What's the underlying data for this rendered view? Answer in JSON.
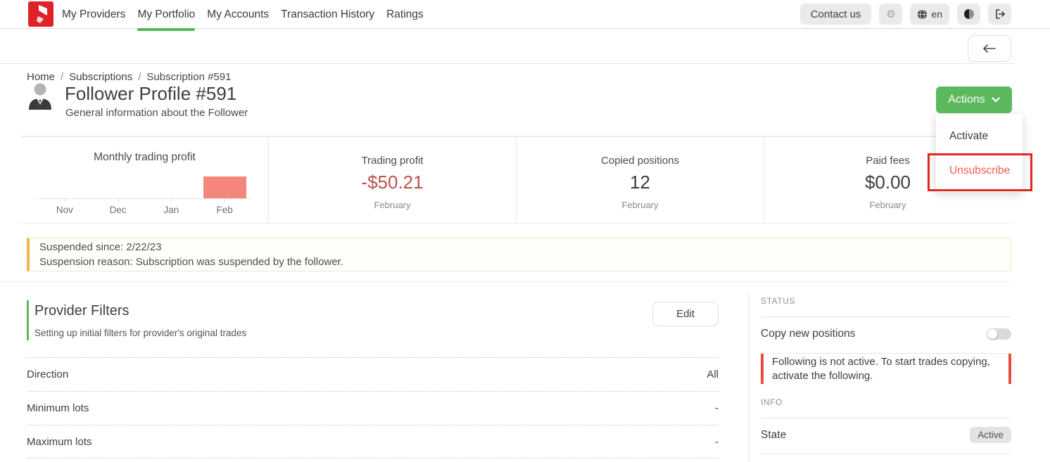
{
  "topbar": {
    "contact_us": "Contact us",
    "language": "en"
  },
  "nav": {
    "items": [
      {
        "label": "My Providers",
        "active": false
      },
      {
        "label": "My Portfolio",
        "active": true
      },
      {
        "label": "My Accounts",
        "active": false
      },
      {
        "label": "Transaction History",
        "active": false
      },
      {
        "label": "Ratings",
        "active": false
      }
    ]
  },
  "breadcrumb": {
    "separator": "/",
    "items": [
      "Home",
      "Subscriptions",
      "Subscription #591"
    ]
  },
  "profile": {
    "title": "Follower Profile #591",
    "subtitle": "General information about the Follower"
  },
  "actions": {
    "label": "Actions",
    "menu": [
      {
        "label": "Activate",
        "danger": false,
        "annotated": false
      },
      {
        "label": "Unsubscribe",
        "danger": true,
        "annotated": true
      }
    ]
  },
  "stats": {
    "chart_title": "Monthly trading profit",
    "cards": [
      {
        "title": "Trading profit",
        "value": "-$50.21",
        "period": "February",
        "negative": true
      },
      {
        "title": "Copied positions",
        "value": "12",
        "period": "February",
        "negative": false
      },
      {
        "title": "Paid fees",
        "value": "$0.00",
        "period": "February",
        "negative": false
      }
    ]
  },
  "chart_data": {
    "type": "bar",
    "title": "Monthly trading profit",
    "categories": [
      "Nov",
      "Dec",
      "Jan",
      "Feb"
    ],
    "values": [
      0,
      0,
      0,
      -50.21
    ],
    "bar_color": "#f4867b",
    "xlabel": "",
    "ylabel": "",
    "legend": "none",
    "grid": false
  },
  "banner": {
    "line1": "Suspended since: 2/22/23",
    "line2": "Suspension reason: Subscription was suspended by the follower."
  },
  "filters": {
    "title": "Provider Filters",
    "subtitle": "Setting up initial filters for provider's original trades",
    "edit_label": "Edit",
    "rows": [
      {
        "label": "Direction",
        "value": "All"
      },
      {
        "label": "Minimum lots",
        "value": "-"
      },
      {
        "label": "Maximum lots",
        "value": "-"
      }
    ]
  },
  "status_panel": {
    "header": "STATUS",
    "copy_label": "Copy new positions",
    "copy_on": false,
    "alert_text": "Following is not active. To start trades copying, activate the following."
  },
  "info_panel": {
    "header": "INFO",
    "state_label": "State",
    "state_value": "Active"
  },
  "colors": {
    "accent_green": "#5cb85c",
    "bar_salmon": "#f4867b",
    "negative_red": "#b9544c",
    "danger_red": "#f15b4e",
    "warning_orange": "#efb54e",
    "alert_red": "#e84c3d",
    "annotation_red": "#e0281e"
  }
}
